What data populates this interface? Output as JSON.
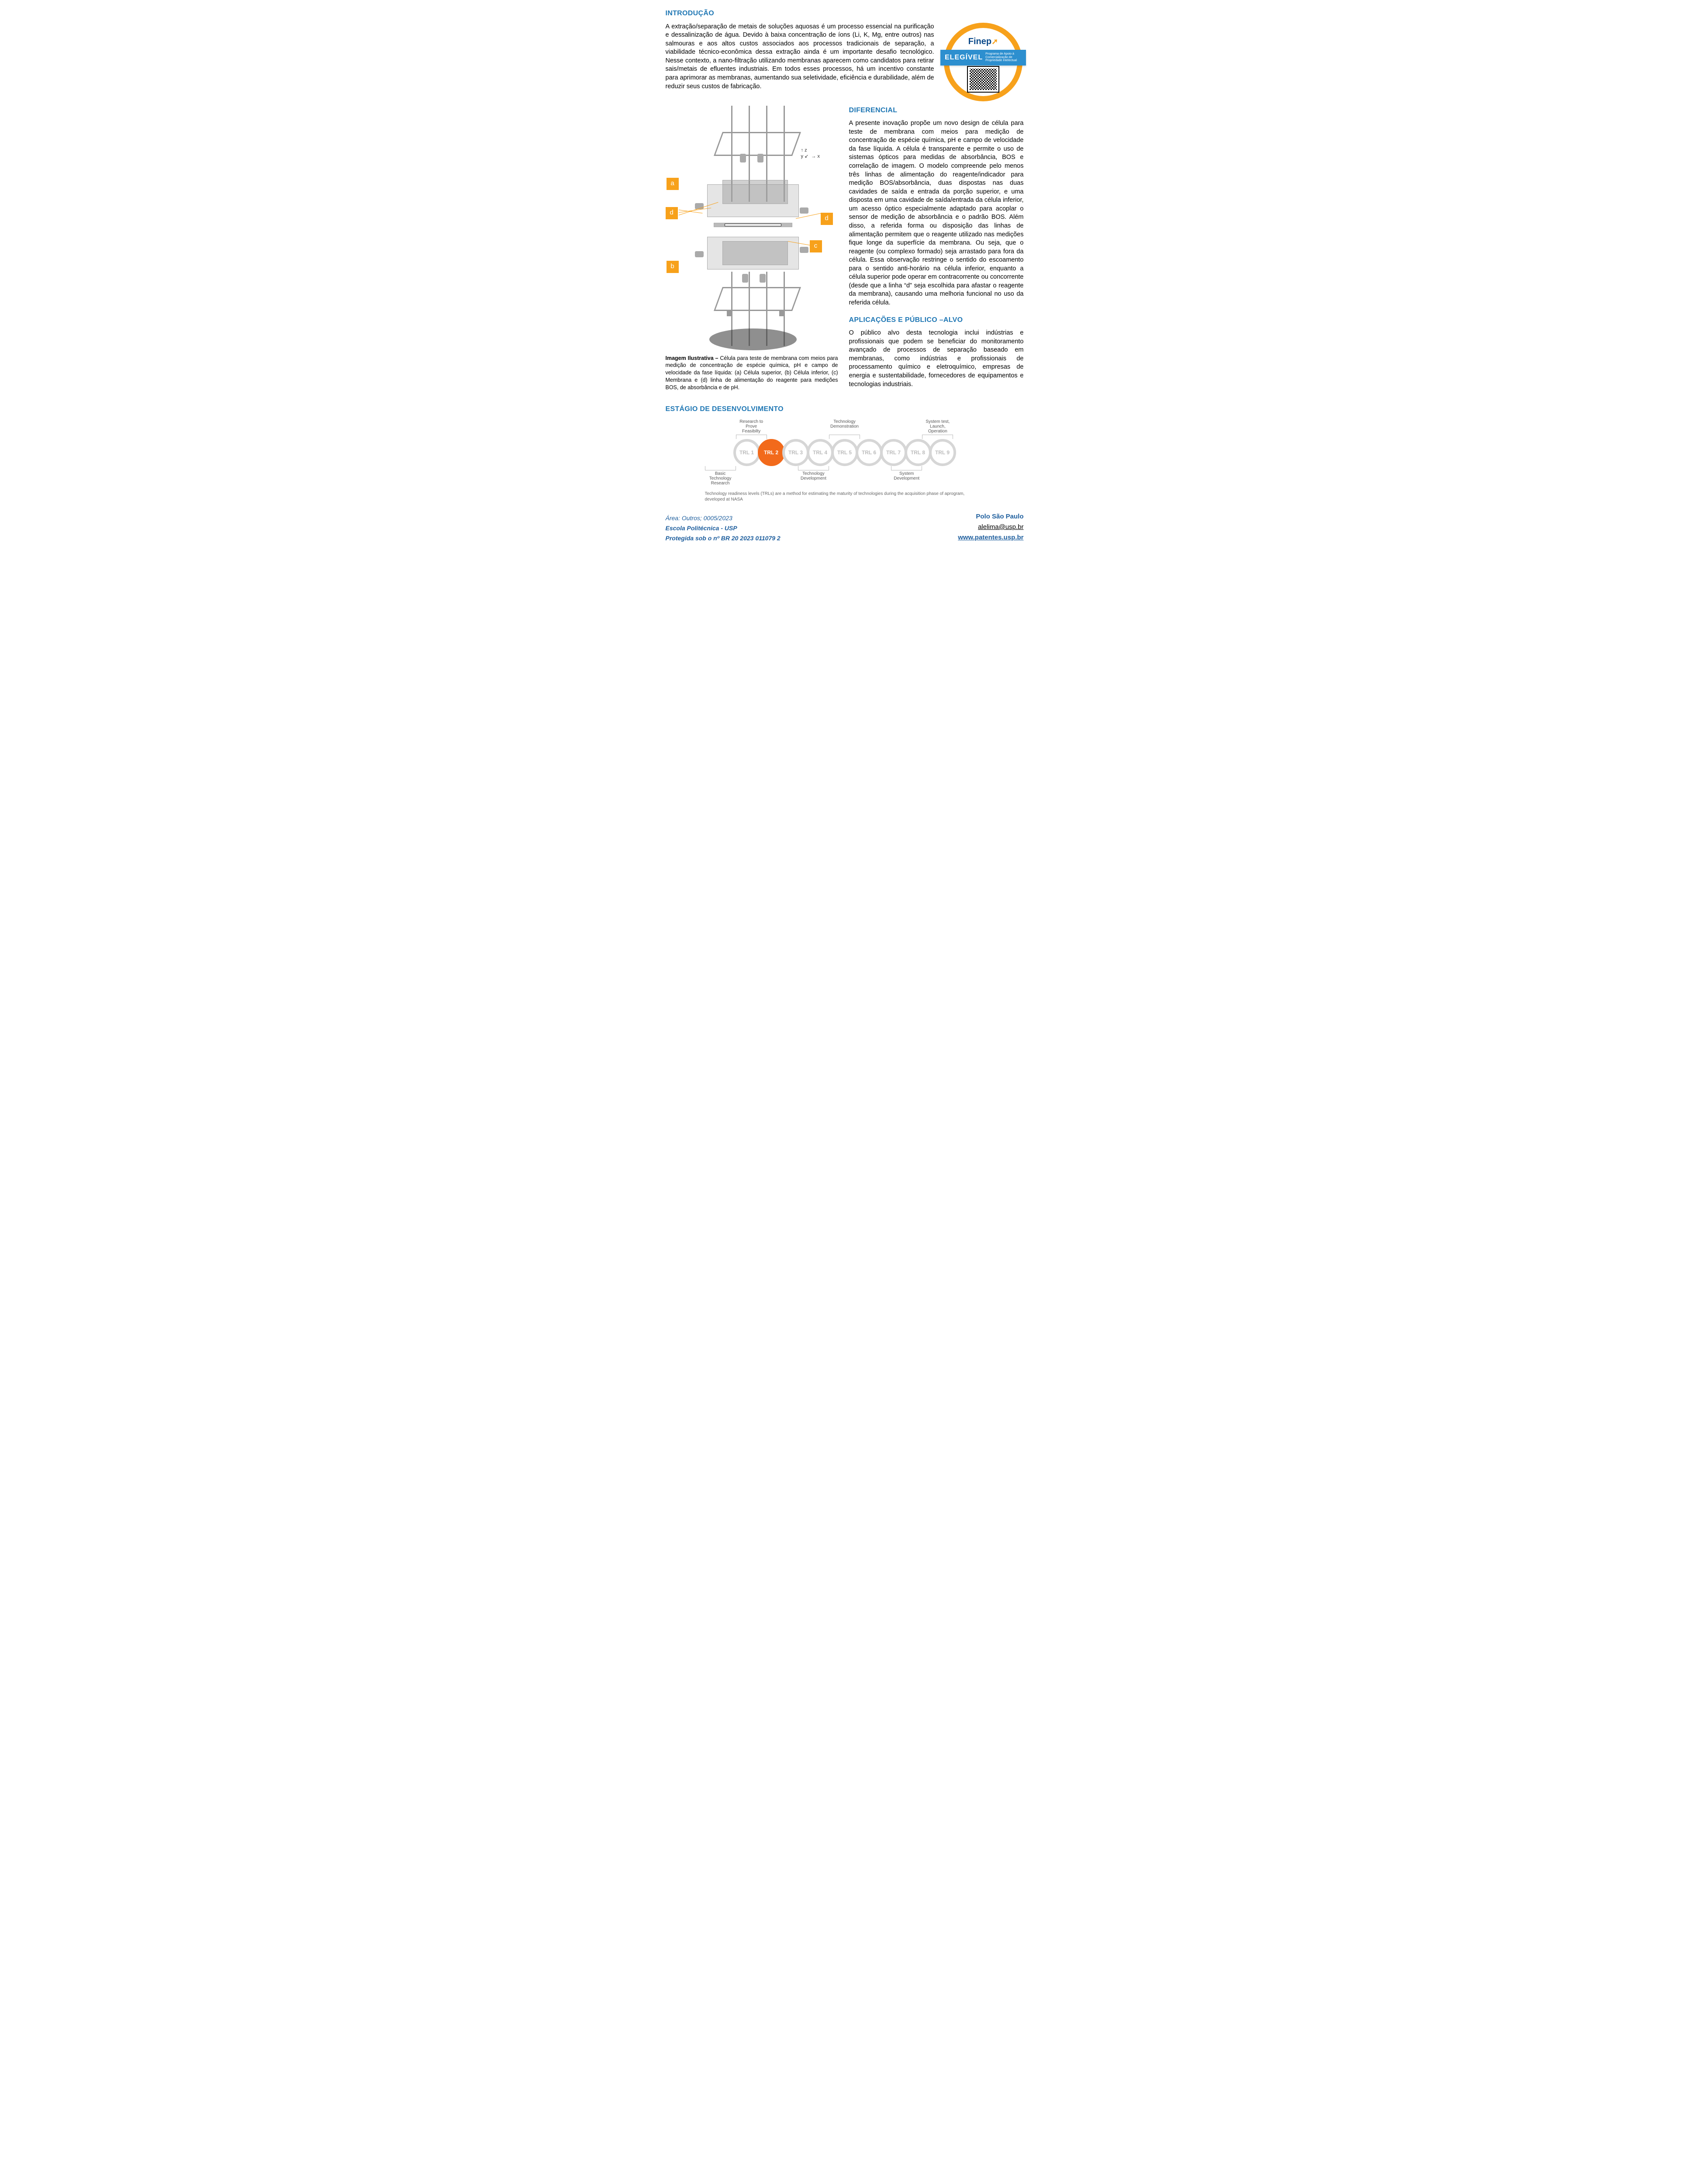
{
  "colors": {
    "heading": "#1f77b4",
    "accent_orange": "#f7a11b",
    "trl_active": "#f26a1b",
    "trl_ring": "#d6d6d6",
    "trl_text": "#bdbdbd",
    "footer_blue": "#1f5f9e",
    "ribbon": "#2d8fcf"
  },
  "sections": {
    "intro_title": "INTRODUÇÃO",
    "intro_body": "A extração/separação de metais de soluções aquosas é um processo essencial na purificação e dessalinização de água. Devido à baixa concentração de íons (Li, K, Mg, entre outros) nas salmouras e aos altos custos associados aos processos tradicionais de separação, a viabilidade técnico-econômica dessa extração ainda é um importante desafio tecnológico. Nesse contexto, a nano-filtração utilizando membranas aparecem como candidatos para retirar sais/metais de efluentes industriais. Em todos esses processos, há um incentivo constante para aprimorar as membranas, aumentando sua seletividade, eficiência e durabilidade, além de reduzir seus custos de fabricação.",
    "diff_title": "DIFERENCIAL",
    "diff_body": "A presente inovação propõe um novo design de célula para teste de membrana com meios para medição de concentração de espécie química, pH e campo de velocidade da fase líquida. A célula é transparente e permite o uso de sistemas ópticos para medidas de absorbância, BOS e correlação de imagem. O modelo compreende pelo menos três linhas de alimentação do reagente/indicador para medição BOS/absorbância, duas dispostas nas duas cavidades de saída e entrada da porção superior, e uma disposta em uma cavidade de saída/entrada da célula inferior, um acesso óptico especialmente adaptado para acoplar o sensor de medição de absorbância e o padrão BOS. Além disso, a referida forma ou disposição das linhas de alimentação permitem que o reagente utilizado nas medições fique longe da superfície da membrana. Ou seja, que o reagente (ou complexo formado) seja arrastado para fora da célula. Essa observação restringe o sentido do escoamento para o sentido anti-horário na célula inferior, enquanto a célula superior pode operar em contracorrente ou concorrente (desde que a linha “d” seja escolhida para afastar o reagente da membrana), causando uma melhoria funcional no uso da referida célula.",
    "apps_title": "APLICAÇÕES E PÚBLICO –ALVO",
    "apps_body": "O público alvo desta tecnologia inclui indústrias e profissionais que podem se beneficiar do monitoramento avançado de processos de separação baseado em membranas, como indústrias e profissionais de processamento químico e eletroquímico, empresas de energia e sustentabilidade, fornecedores de equipamentos e tecnologias industriais.",
    "dev_title": "ESTÁGIO DE DESENVOLVIMENTO"
  },
  "badge": {
    "brand": "Finep",
    "ribbon_main": "ELEGÍVEL",
    "ribbon_sub1": "Programa de Apoio à",
    "ribbon_sub2": "Comercialização de",
    "ribbon_sub3": "Propriedade Intelectual"
  },
  "figure": {
    "labels": {
      "a": "a",
      "b": "b",
      "c": "c",
      "d": "d"
    },
    "axis_x": "x",
    "axis_y": "y",
    "axis_z": "z",
    "caption_lead": "Imagem Ilustrativa – ",
    "caption_body": "Célula para teste de membrana com meios para medição de concentração de espécie química, pH e campo de velocidade da fase líquida: (a) Célula superior, (b) Célula inferior, (c) Membrana e (d) linha de alimentação do reagente para medições BOS, de absorbância e de pH."
  },
  "trl": {
    "levels": [
      "TRL 1",
      "TRL 2",
      "TRL 3",
      "TRL 4",
      "TRL 5",
      "TRL 6",
      "TRL 7",
      "TRL 8",
      "TRL 9"
    ],
    "active_index": 1,
    "top_labels": [
      "",
      "Research to Prove Feasibilty",
      "",
      "",
      "Technology Demonstration",
      "",
      "",
      "System test, Launch, Operation",
      ""
    ],
    "bottom_labels": [
      "Basic Technology Research",
      "",
      "",
      "Technology Development",
      "",
      "",
      "System Development",
      "",
      ""
    ],
    "note": "Technology readiness levels (TRLs) are a method for estimating the maturity of technologies during the acquisition phase of aprogram, developed at NASA"
  },
  "footer": {
    "area": "Área: Outros; 0005/2023",
    "school": "Escola Politécnica - USP",
    "protected": "Protegida sob o nº BR 20 2023 011079 2",
    "polo": "Polo São Paulo",
    "email": "alelima@usp.br",
    "site": "www.patentes.usp.br"
  }
}
